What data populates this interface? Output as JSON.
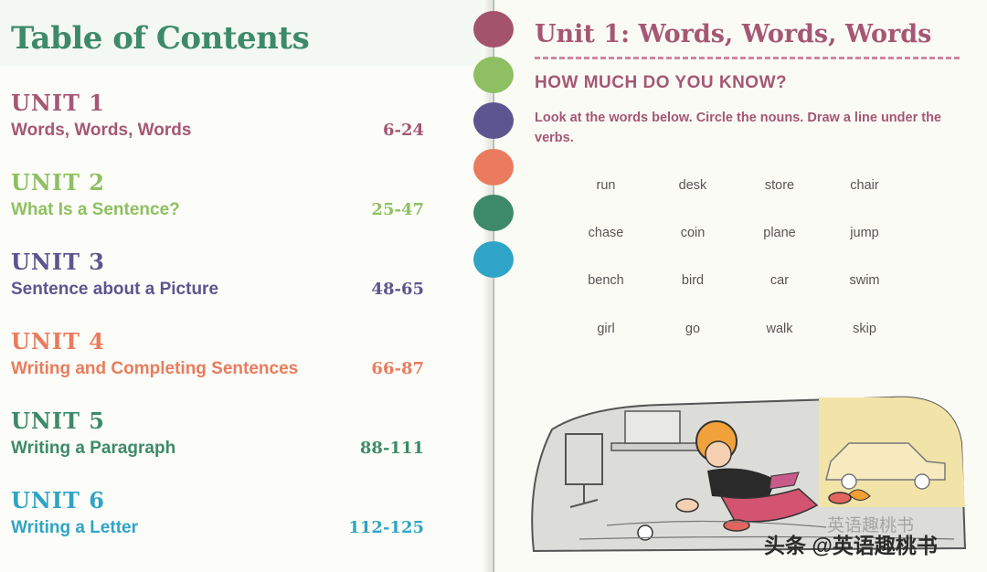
{
  "toc": {
    "title": "Table of Contents",
    "units": [
      {
        "heading": "UNIT 1",
        "name": "Words, Words, Words",
        "pages": "6-24",
        "color": "#a55773"
      },
      {
        "heading": "UNIT 2",
        "name": "What Is a Sentence?",
        "pages": "25-47",
        "color": "#8fbf63"
      },
      {
        "heading": "UNIT 3",
        "name": "Sentence about a Picture",
        "pages": "48-65",
        "color": "#5d5590"
      },
      {
        "heading": "UNIT 4",
        "name": "Writing and Completing Sentences",
        "pages": "66-87",
        "color": "#ea7b5e"
      },
      {
        "heading": "UNIT 5",
        "name": "Writing a Paragraph",
        "pages": "88-111",
        "color": "#3d8a6a"
      },
      {
        "heading": "UNIT 6",
        "name": "Writing a Letter",
        "pages": "112-125",
        "color": "#2fa4c6"
      }
    ]
  },
  "tab_dots": [
    "#a3536b",
    "#8fbf63",
    "#5d5590",
    "#ea7b5e",
    "#3d8a6a",
    "#2fa4c6"
  ],
  "exercise": {
    "title": "Unit 1: Words, Words, Words",
    "subtitle": "HOW MUCH DO YOU KNOW?",
    "instructions": "Look at the words below. Circle the nouns. Draw a line under the verbs.",
    "words": [
      [
        "run",
        "desk",
        "store",
        "chair"
      ],
      [
        "chase",
        "coin",
        "plane",
        "jump"
      ],
      [
        "bench",
        "bird",
        "car",
        "swim"
      ],
      [
        "girl",
        "go",
        "walk",
        "skip"
      ]
    ]
  },
  "watermark": {
    "main": "头条 @英语趣桃书",
    "ghost": "英语趣桃书"
  }
}
